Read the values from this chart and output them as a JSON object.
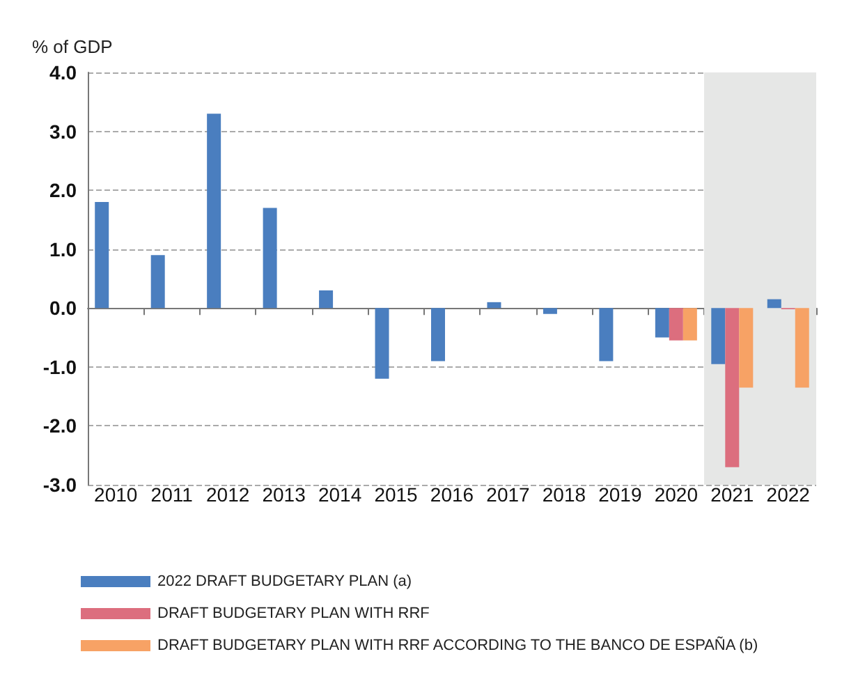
{
  "chart_data": {
    "type": "bar",
    "ylabel": "% of GDP",
    "categories": [
      "2010",
      "2011",
      "2012",
      "2013",
      "2014",
      "2015",
      "2016",
      "2017",
      "2018",
      "2019",
      "2020",
      "2021",
      "2022"
    ],
    "series": [
      {
        "name": "2022 DRAFT BUDGETARY PLAN (a)",
        "color": "#4a7ebf",
        "values": [
          1.8,
          0.9,
          3.3,
          1.7,
          0.3,
          -1.2,
          -0.9,
          0.1,
          -0.1,
          -0.9,
          -0.5,
          -0.95,
          0.15
        ]
      },
      {
        "name": "DRAFT BUDGETARY PLAN WITH RRF",
        "color": "#dc6e7e",
        "values": [
          null,
          null,
          null,
          null,
          null,
          null,
          null,
          null,
          null,
          null,
          -0.55,
          -2.7,
          -0.02
        ]
      },
      {
        "name": "DRAFT BUDGETARY PLAN WITH RRF ACCORDING TO THE BANCO DE ESPAÑA (b)",
        "color": "#f7a265",
        "values": [
          null,
          null,
          null,
          null,
          null,
          null,
          null,
          null,
          null,
          null,
          -0.55,
          -1.35,
          -1.35
        ]
      }
    ],
    "ylim": [
      -3,
      4
    ],
    "yticks": [
      {
        "value": -3,
        "label": "-3.0"
      },
      {
        "value": -2,
        "label": "-2.0"
      },
      {
        "value": -1,
        "label": "-1.0"
      },
      {
        "value": 0,
        "label": "0.0"
      },
      {
        "value": 1,
        "label": "1.0"
      },
      {
        "value": 2,
        "label": "2.0"
      },
      {
        "value": 3,
        "label": "3.0"
      },
      {
        "value": 4,
        "label": "4.0"
      }
    ],
    "grid": "y",
    "legend": "bottom left",
    "bands": [
      {
        "axis": "x",
        "from": "2021",
        "to": "2022",
        "color": "#e6e7e6"
      }
    ]
  }
}
